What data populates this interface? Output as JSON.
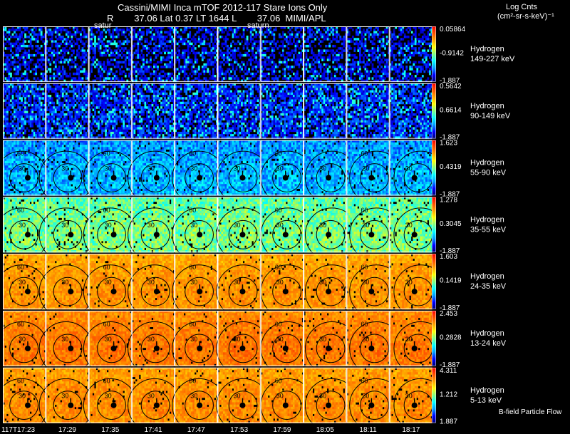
{
  "header": {
    "title": "Cassini/MIMI Inca mTOF  2012-117   Stare   Ions Only",
    "subtitle": "R        37.06 Lat 0.37 LT 1644 L        37.06  MIMI/APL",
    "saturn_label_1": "satur",
    "saturn_label_2": "saturn"
  },
  "colorbar_title": {
    "line1": "Log Cnts",
    "line2": "(cm²-sr-s-keV)⁻¹"
  },
  "footer_note": "B-field Particle Flow",
  "time_labels": [
    "117T17:23",
    "17:29",
    "17:35",
    "17:41",
    "17:47",
    "17:53",
    "17:59",
    "18:05",
    "18:11",
    "18:17"
  ],
  "chart_data": {
    "type": "heatmap",
    "title": "Cassini/MIMI Inca mTOF 2012-117 Stare Ions Only",
    "columns": 10,
    "rows": [
      {
        "species": "Hydrogen",
        "energy": "149-227 keV",
        "cb_max": "0.05864",
        "cb_mid": "-0.9142",
        "cb_min": "-1.887",
        "level": 0.12,
        "spread": 0.07,
        "fill": 0.55,
        "contours": false
      },
      {
        "species": "Hydrogen",
        "energy": "90-149 keV",
        "cb_max": "0.5642",
        "cb_mid": "0.6614",
        "cb_min": "-1.887",
        "level": 0.15,
        "spread": 0.08,
        "fill": 0.75,
        "contours": false
      },
      {
        "species": "Hydrogen",
        "energy": "55-90 keV",
        "cb_max": "1.623",
        "cb_mid": "0.4319",
        "cb_min": "-1.887",
        "level": 0.27,
        "spread": 0.1,
        "fill": 0.95,
        "contours": true
      },
      {
        "species": "Hydrogen",
        "energy": "35-55 keV",
        "cb_max": "1.278",
        "cb_mid": "0.3045",
        "cb_min": "-1.887",
        "level": 0.48,
        "spread": 0.1,
        "fill": 0.95,
        "contours": true
      },
      {
        "species": "Hydrogen",
        "energy": "24-35 keV",
        "cb_max": "1.603",
        "cb_mid": "0.1419",
        "cb_min": "-1.887",
        "level": 0.76,
        "spread": 0.06,
        "fill": 0.96,
        "contours": true
      },
      {
        "species": "Hydrogen",
        "energy": "13-24 keV",
        "cb_max": "2.453",
        "cb_mid": "0.2828",
        "cb_min": "-1.887",
        "level": 0.8,
        "spread": 0.06,
        "fill": 0.96,
        "contours": true
      },
      {
        "species": "Hydrogen",
        "energy": "5-13 keV",
        "cb_max": "4.311",
        "cb_mid": "1.212",
        "cb_min": "1.887",
        "level": 0.77,
        "spread": 0.06,
        "fill": 0.96,
        "contours": true
      }
    ],
    "contour_labels": [
      "60",
      "30"
    ],
    "colorscale": [
      "#00006e",
      "#0000ff",
      "#00a0ff",
      "#00ffff",
      "#80ff80",
      "#ffff00",
      "#ffa500",
      "#ff5000",
      "#ff0000"
    ]
  }
}
